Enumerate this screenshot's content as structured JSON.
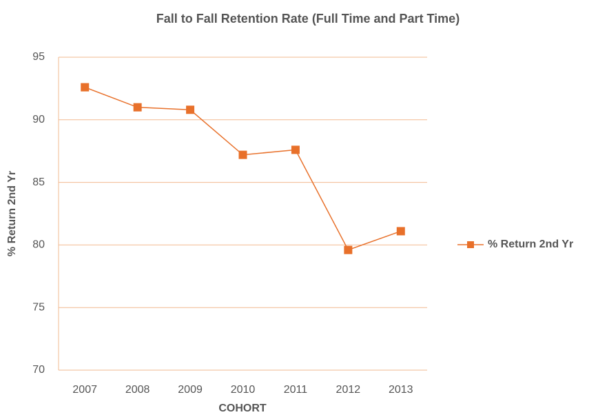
{
  "chart_data": {
    "type": "line",
    "title": "Fall to Fall Retention Rate (Full Time and Part Time)",
    "x_label": "COHORT",
    "y_label": "% Return 2nd Yr",
    "categories": [
      "2007",
      "2008",
      "2009",
      "2010",
      "2011",
      "2012",
      "2013"
    ],
    "series": [
      {
        "name": "% Return 2nd Yr",
        "color": "#e8702a",
        "values": [
          92.6,
          91.0,
          90.8,
          87.2,
          87.6,
          79.6,
          81.1
        ]
      }
    ],
    "ylim": [
      70,
      95
    ],
    "yticks": [
      70,
      75,
      80,
      85,
      90,
      95
    ],
    "grid": true,
    "legend": "right"
  }
}
